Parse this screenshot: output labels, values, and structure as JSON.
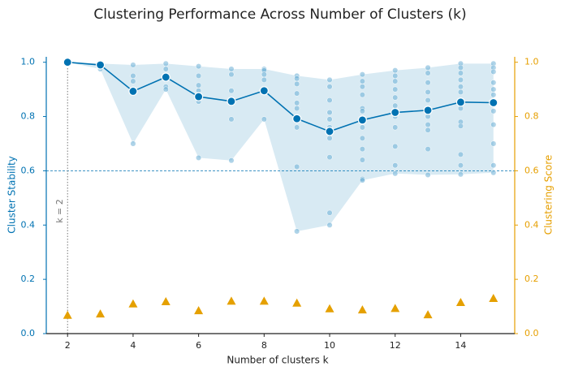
{
  "chart_data": {
    "type": "line",
    "title": "Clustering Performance Across Number of Clusters (k)",
    "xlabel": "Number of clusters k",
    "ylabel": "Cluster Stability",
    "y2label": "Clustering Score",
    "x": [
      2,
      3,
      4,
      5,
      6,
      7,
      8,
      9,
      10,
      11,
      12,
      13,
      14,
      15
    ],
    "xlim": [
      1.35,
      15.65
    ],
    "xticks": [
      2,
      4,
      6,
      8,
      10,
      12,
      14
    ],
    "ylim": [
      0,
      1.02
    ],
    "yticks": [
      {
        "value": 0,
        "label": "0.0"
      },
      {
        "value": 0.2,
        "label": "0.2"
      },
      {
        "value": 0.4,
        "label": "0.4"
      },
      {
        "value": 0.6,
        "label": "0.6"
      },
      {
        "value": 0.8,
        "label": "0.8"
      },
      {
        "value": 1,
        "label": "1.0"
      }
    ],
    "y2lim": [
      0,
      1.02
    ],
    "y2ticks": [
      {
        "value": 0,
        "label": "0.0"
      },
      {
        "value": 0.2,
        "label": "0.2"
      },
      {
        "value": 0.4,
        "label": "0.4"
      },
      {
        "value": 0.6,
        "label": "0.6"
      },
      {
        "value": 0.8,
        "label": "0.8"
      },
      {
        "value": 1,
        "label": "1.0"
      }
    ],
    "ycolor": "#0072b2",
    "y2color": "#e69f00",
    "hline": 0.6,
    "vline": 2,
    "vline_label": "k = 2",
    "series": [
      {
        "type": "area",
        "color": "#9ecae1",
        "values": [
          1.0,
          0.995,
          0.99,
          0.995,
          0.985,
          0.975,
          0.975,
          0.95,
          0.935,
          0.955,
          0.97,
          0.98,
          0.995,
          0.995
        ],
        "lower": [
          1.0,
          0.975,
          0.7,
          0.9,
          0.648,
          0.638,
          0.79,
          0.377,
          0.4,
          0.565,
          0.59,
          0.585,
          0.587,
          0.593
        ]
      },
      {
        "type": "scatter",
        "color": "#6baed6",
        "x": [
          2,
          2,
          2,
          3,
          3,
          3,
          4,
          4,
          4,
          4,
          5,
          5,
          5,
          5,
          5,
          6,
          6,
          6,
          6,
          6,
          6,
          6,
          7,
          7,
          7,
          7,
          7,
          7,
          8,
          8,
          8,
          8,
          8,
          8,
          9,
          9,
          9,
          9,
          9,
          9,
          9,
          9,
          9,
          9,
          10,
          10,
          10,
          10,
          10,
          10,
          10,
          10,
          10,
          10,
          11,
          11,
          11,
          11,
          11,
          11,
          11,
          11,
          11,
          11,
          11,
          11,
          11,
          12,
          12,
          12,
          12,
          12,
          12,
          12,
          12,
          12,
          12,
          12,
          13,
          13,
          13,
          13,
          13,
          13,
          13,
          13,
          13,
          13,
          13,
          14,
          14,
          14,
          14,
          14,
          14,
          14,
          14,
          14,
          14,
          14,
          14,
          14,
          15,
          15,
          15,
          15,
          15,
          15,
          15,
          15,
          15,
          15,
          15,
          15
        ],
        "values": [
          1.0,
          1.0,
          1.0,
          0.995,
          0.985,
          0.975,
          0.99,
          0.95,
          0.93,
          0.7,
          0.995,
          0.975,
          0.95,
          0.91,
          0.9,
          0.985,
          0.95,
          0.915,
          0.895,
          0.87,
          0.855,
          0.648,
          0.975,
          0.955,
          0.895,
          0.86,
          0.79,
          0.638,
          0.975,
          0.97,
          0.955,
          0.935,
          0.9,
          0.79,
          0.95,
          0.94,
          0.92,
          0.885,
          0.85,
          0.83,
          0.79,
          0.76,
          0.615,
          0.377,
          0.935,
          0.91,
          0.86,
          0.815,
          0.79,
          0.76,
          0.72,
          0.65,
          0.445,
          0.4,
          0.955,
          0.93,
          0.91,
          0.88,
          0.83,
          0.82,
          0.795,
          0.76,
          0.72,
          0.68,
          0.64,
          0.57,
          0.565,
          0.97,
          0.95,
          0.93,
          0.9,
          0.87,
          0.84,
          0.8,
          0.76,
          0.69,
          0.62,
          0.59,
          0.98,
          0.96,
          0.925,
          0.89,
          0.86,
          0.83,
          0.8,
          0.77,
          0.75,
          0.68,
          0.585,
          0.995,
          0.98,
          0.96,
          0.935,
          0.91,
          0.89,
          0.86,
          0.83,
          0.78,
          0.765,
          0.66,
          0.62,
          0.587,
          0.995,
          0.98,
          0.965,
          0.925,
          0.9,
          0.88,
          0.85,
          0.82,
          0.77,
          0.7,
          0.62,
          0.593
        ]
      },
      {
        "type": "line",
        "marker": "circle",
        "color": "#0072b2",
        "values": [
          1.0,
          0.99,
          0.893,
          0.945,
          0.873,
          0.856,
          0.895,
          0.792,
          0.745,
          0.787,
          0.815,
          0.823,
          0.853,
          0.851
        ]
      },
      {
        "type": "points",
        "marker": "triangle",
        "color": "#e5a000",
        "axis": "y2",
        "values": [
          0.068,
          0.073,
          0.11,
          0.118,
          0.085,
          0.12,
          0.12,
          0.113,
          0.092,
          0.088,
          0.093,
          0.07,
          0.115,
          0.13
        ]
      }
    ]
  }
}
